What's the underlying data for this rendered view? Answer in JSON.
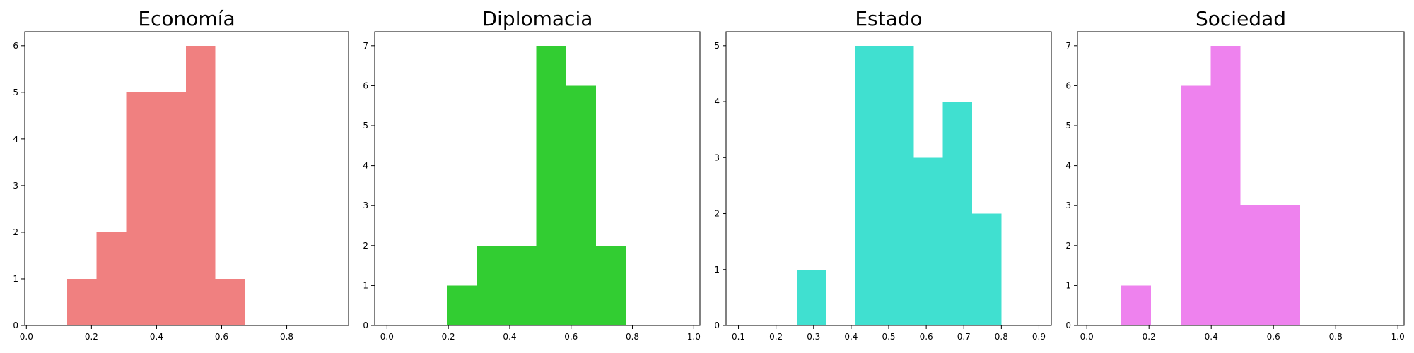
{
  "chart_data": [
    {
      "type": "bar",
      "title": "Economía",
      "color": "#f08080",
      "xlim": [
        -0.005,
        0.99
      ],
      "ylim": [
        0,
        6.3
      ],
      "xticks": [
        0.0,
        0.2,
        0.4,
        0.6,
        0.8
      ],
      "xtick_labels": [
        "0.0",
        "0.2",
        "0.4",
        "0.6",
        "0.8"
      ],
      "yticks": [
        0,
        1,
        2,
        3,
        4,
        5,
        6
      ],
      "ytick_labels": [
        "0",
        "1",
        "2",
        "3",
        "4",
        "5",
        "6"
      ],
      "bins": [
        {
          "x0": 0.125,
          "x1": 0.216,
          "count": 1
        },
        {
          "x0": 0.216,
          "x1": 0.307,
          "count": 2
        },
        {
          "x0": 0.307,
          "x1": 0.399,
          "count": 5
        },
        {
          "x0": 0.399,
          "x1": 0.49,
          "count": 5
        },
        {
          "x0": 0.49,
          "x1": 0.581,
          "count": 6
        },
        {
          "x0": 0.581,
          "x1": 0.672,
          "count": 1
        }
      ]
    },
    {
      "type": "bar",
      "title": "Diplomacia",
      "color": "#32cd32",
      "xlim": [
        -0.04,
        1.02
      ],
      "ylim": [
        0,
        7.35
      ],
      "xticks": [
        0.0,
        0.2,
        0.4,
        0.6,
        0.8,
        1.0
      ],
      "xtick_labels": [
        "0.0",
        "0.2",
        "0.4",
        "0.6",
        "0.8",
        "1.0"
      ],
      "yticks": [
        0,
        1,
        2,
        3,
        4,
        5,
        6,
        7
      ],
      "ytick_labels": [
        "0",
        "1",
        "2",
        "3",
        "4",
        "5",
        "6",
        "7"
      ],
      "bins": [
        {
          "x0": 0.195,
          "x1": 0.292,
          "count": 1
        },
        {
          "x0": 0.292,
          "x1": 0.39,
          "count": 2
        },
        {
          "x0": 0.39,
          "x1": 0.487,
          "count": 2
        },
        {
          "x0": 0.487,
          "x1": 0.584,
          "count": 7
        },
        {
          "x0": 0.584,
          "x1": 0.681,
          "count": 6
        },
        {
          "x0": 0.681,
          "x1": 0.778,
          "count": 2
        }
      ]
    },
    {
      "type": "bar",
      "title": "Estado",
      "color": "#40e0d0",
      "xlim": [
        0.067,
        0.933
      ],
      "ylim": [
        0,
        5.25
      ],
      "xticks": [
        0.1,
        0.2,
        0.3,
        0.4,
        0.5,
        0.6,
        0.7,
        0.8,
        0.9
      ],
      "xtick_labels": [
        "0.1",
        "0.2",
        "0.3",
        "0.4",
        "0.5",
        "0.6",
        "0.7",
        "0.8",
        "0.9"
      ],
      "yticks": [
        0,
        1,
        2,
        3,
        4,
        5
      ],
      "ytick_labels": [
        "0",
        "1",
        "2",
        "3",
        "4",
        "5"
      ],
      "bins": [
        {
          "x0": 0.256,
          "x1": 0.333,
          "count": 1
        },
        {
          "x0": 0.333,
          "x1": 0.411,
          "count": 0
        },
        {
          "x0": 0.411,
          "x1": 0.489,
          "count": 5
        },
        {
          "x0": 0.489,
          "x1": 0.567,
          "count": 5
        },
        {
          "x0": 0.567,
          "x1": 0.644,
          "count": 3
        },
        {
          "x0": 0.644,
          "x1": 0.722,
          "count": 4
        },
        {
          "x0": 0.722,
          "x1": 0.8,
          "count": 2
        }
      ]
    },
    {
      "type": "bar",
      "title": "Sociedad",
      "color": "#ee82ee",
      "xlim": [
        -0.03,
        1.02
      ],
      "ylim": [
        0,
        7.35
      ],
      "xticks": [
        0.0,
        0.2,
        0.4,
        0.6,
        0.8,
        1.0
      ],
      "xtick_labels": [
        "0.0",
        "0.2",
        "0.4",
        "0.6",
        "0.8",
        "1.0"
      ],
      "yticks": [
        0,
        1,
        2,
        3,
        4,
        5,
        6,
        7
      ],
      "ytick_labels": [
        "0",
        "1",
        "2",
        "3",
        "4",
        "5",
        "6",
        "7"
      ],
      "bins": [
        {
          "x0": 0.11,
          "x1": 0.206,
          "count": 1
        },
        {
          "x0": 0.206,
          "x1": 0.302,
          "count": 0
        },
        {
          "x0": 0.302,
          "x1": 0.398,
          "count": 6
        },
        {
          "x0": 0.398,
          "x1": 0.494,
          "count": 7
        },
        {
          "x0": 0.494,
          "x1": 0.59,
          "count": 3
        },
        {
          "x0": 0.59,
          "x1": 0.686,
          "count": 3
        }
      ]
    }
  ]
}
